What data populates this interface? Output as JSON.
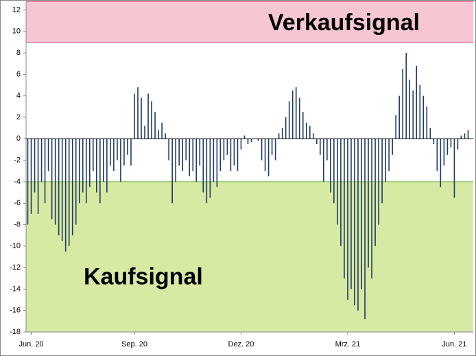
{
  "chart_data": {
    "type": "bar",
    "categories": [
      null,
      "Jun. 20",
      null,
      null,
      null,
      null,
      null,
      null,
      null,
      null,
      null,
      null,
      null,
      null,
      null,
      null,
      null,
      null,
      null,
      null,
      null,
      null,
      null,
      null,
      null,
      null,
      null,
      null,
      null,
      null,
      null,
      "Sep. 20",
      null,
      null,
      null,
      null,
      null,
      null,
      null,
      null,
      null,
      null,
      null,
      null,
      null,
      null,
      null,
      null,
      null,
      null,
      null,
      null,
      null,
      null,
      null,
      null,
      null,
      null,
      null,
      null,
      null,
      null,
      "Dez. 20",
      null,
      null,
      null,
      null,
      null,
      null,
      null,
      null,
      null,
      null,
      null,
      null,
      null,
      null,
      null,
      null,
      null,
      null,
      null,
      null,
      null,
      null,
      null,
      null,
      null,
      null,
      null,
      null,
      null,
      null,
      "Mrz. 21",
      null,
      null,
      null,
      null,
      null,
      null,
      null,
      null,
      null,
      null,
      null,
      null,
      null,
      null,
      null,
      null,
      null,
      null,
      null,
      null,
      null,
      null,
      null,
      null,
      null,
      null,
      null,
      null,
      null,
      null,
      "Jun. 21",
      null,
      null,
      null,
      null,
      null
    ],
    "values": [
      -8,
      -7,
      -5,
      -7,
      -4,
      -6,
      -3,
      -7.5,
      -8,
      -9,
      -9.5,
      -10.5,
      -10,
      -9,
      -8,
      -6,
      -5,
      -6,
      -4.5,
      -3,
      -5,
      -6,
      -4,
      -5,
      -2.5,
      -3,
      -2,
      -4,
      -2.5,
      -1.5,
      -2.5,
      4.2,
      4.8,
      3.8,
      1.2,
      4.2,
      3.5,
      2.5,
      0.8,
      1.5,
      0.5,
      -2,
      -6,
      -4,
      -2.5,
      -3,
      -2,
      -3.5,
      -3,
      -4,
      -2.5,
      -5,
      -6,
      -5.5,
      -4,
      -4.5,
      -3,
      -2,
      -1.5,
      -3,
      -2.5,
      -3,
      -1,
      0.3,
      -0.5,
      -0.3,
      0,
      -0.2,
      -2,
      -3,
      -3.5,
      -1.5,
      -2,
      0.5,
      1,
      2,
      3.5,
      4.5,
      4.8,
      3.8,
      2.5,
      1.5,
      1.2,
      0.5,
      -0.5,
      -1.5,
      -4,
      -2,
      -5,
      -6,
      -8,
      -10,
      -13,
      -15,
      -14,
      -15.5,
      -16,
      -14,
      -16.8,
      -12,
      -13,
      -10,
      -8,
      -6,
      -4,
      -3,
      -1.5,
      2.2,
      4,
      6.5,
      8,
      5.5,
      4.5,
      6.8,
      5,
      4,
      3,
      1,
      -0.5,
      -3,
      -4.5,
      -2.5,
      -1.5,
      -0.8,
      -5.5,
      -1,
      0.3,
      0.5,
      0.8,
      0
    ],
    "color": "#1f3864",
    "ylim": [
      -18,
      12.8
    ],
    "yticks": [
      -18,
      -16,
      -14,
      -12,
      -10,
      -8,
      -6,
      -4,
      -2,
      0,
      2,
      4,
      6,
      8,
      10,
      12
    ],
    "zones": [
      {
        "label": "Verkaufsignal",
        "from": 9,
        "to": 12.8,
        "color": "#f6c6d2",
        "border": "#d9405f"
      },
      {
        "label": "Kaufsignal",
        "from": -18,
        "to": -4,
        "color": "#d6eaa4",
        "border": "#6cb33f"
      }
    ]
  }
}
